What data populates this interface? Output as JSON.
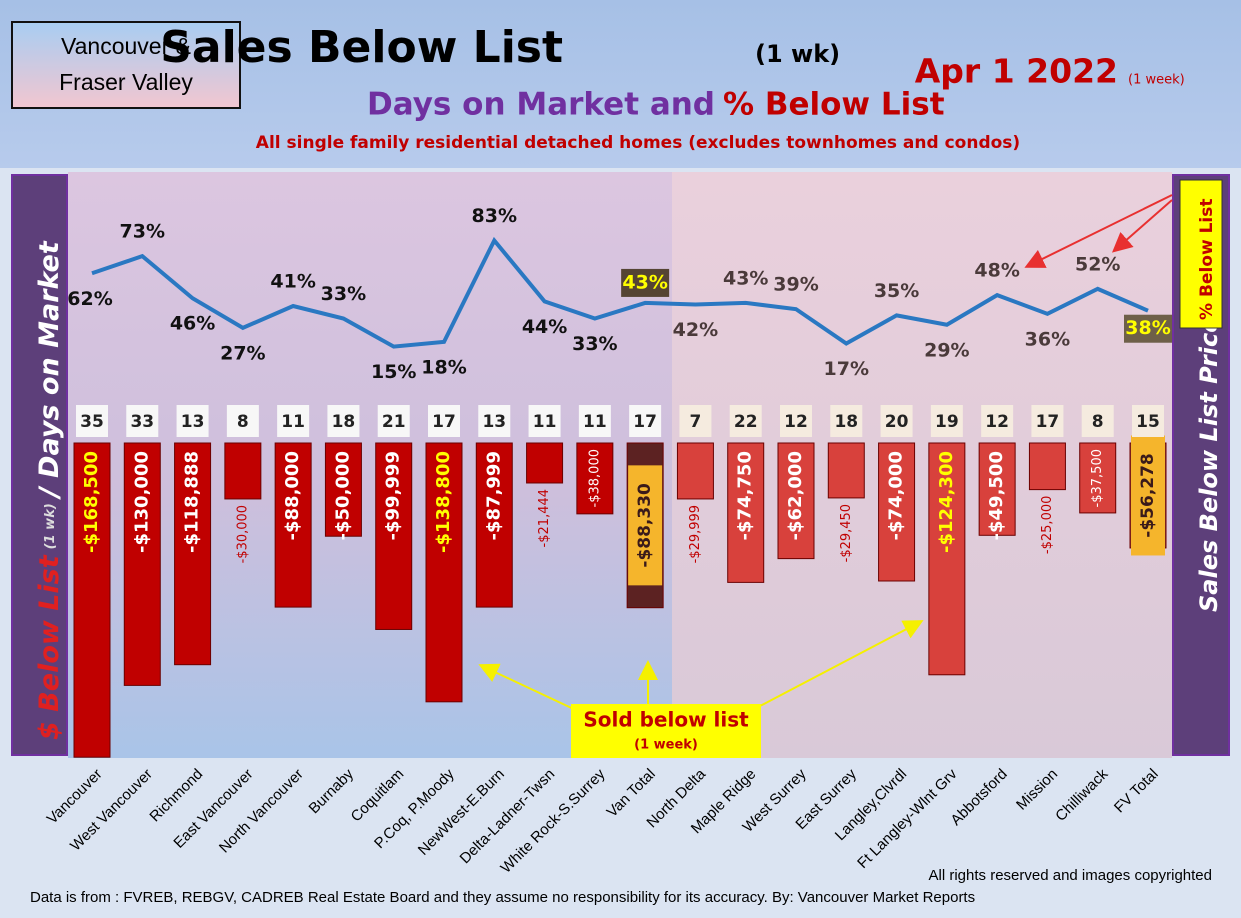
{
  "chart_data": {
    "type": "bar",
    "title": "Sales Below List",
    "title_note": "(1 wk)",
    "date": "Apr 1  2022",
    "date_note": "(1 week)",
    "region_label": [
      "Vancouver &",
      "Fraser Valley"
    ],
    "subtitle": [
      "Days on Market and",
      "% Below List"
    ],
    "note": "All single family residential detached homes (excludes townhomes and condos)",
    "y_label": [
      "$ Below List",
      "(1 wk)",
      "/ Days on Market"
    ],
    "y2_label": "Sales Below List Price",
    "line_label": "% Below List",
    "callout": "Sold below list",
    "callout_note": "(1 week)",
    "copyright": "All rights reserved and  images copyrighted",
    "source": "Data is from : FVREB, REBGV, CADREB Real Estate Board and they assume no responsibility for its accuracy. By: Vancouver Market Reports",
    "categories": [
      "Vancouver",
      "West Vancouver",
      "Richmond",
      "East Vancouver",
      "North Vancouver",
      "Burnaby",
      "Coquitlam",
      "P.Coq, P.Moody",
      "NewWest-E.Burn",
      "Delta-Ladner-Twsn",
      "White Rock-S.Surrey",
      "Van Total",
      "North Delta",
      "Maple Ridge",
      "West Surrey",
      "East Surrey",
      "Langley,Clvrdl",
      "Ft Langley-Wlnt Grv",
      "Abbotsford",
      "Mission",
      "Chilliwack",
      "FV Total"
    ],
    "values": [
      -168500,
      -130000,
      -118888,
      -30000,
      -88000,
      -50000,
      -99999,
      -138800,
      -87999,
      -21444,
      -38000,
      -88330,
      -29999,
      -74750,
      -62000,
      -29450,
      -74000,
      -124300,
      -49500,
      -25000,
      -37500,
      -56278
    ],
    "value_labels": [
      "-$168,500",
      "-$130,000",
      "-$118,888",
      "-$30,000",
      "-$88,000",
      "-$50,000",
      "-$99,999",
      "-$138,800",
      "-$87,999",
      "-$21,444",
      "-$38,000",
      "-$88,330",
      "-$29,999",
      "-$74,750",
      "-$62,000",
      "-$29,450",
      "-$74,000",
      "-$124,300",
      "-$49,500",
      "-$25,000",
      "-$37,500",
      "-$56,278"
    ],
    "ylim": [
      -170000,
      0
    ],
    "days": [
      35,
      33,
      13,
      8,
      11,
      18,
      21,
      17,
      13,
      11,
      11,
      17,
      7,
      22,
      12,
      18,
      20,
      19,
      12,
      17,
      8,
      15
    ],
    "percent": [
      62,
      73,
      46,
      27,
      41,
      33,
      15,
      18,
      83,
      44,
      33,
      43,
      42,
      43,
      39,
      17,
      35,
      29,
      48,
      36,
      52,
      38
    ],
    "percent_labels": [
      "62%",
      "73%",
      "46%",
      "27%",
      "41%",
      "33%",
      "15%",
      "18%",
      "83%",
      "44%",
      "33%",
      "43%",
      "42%",
      "43%",
      "39%",
      "17%",
      "35%",
      "29%",
      "48%",
      "36%",
      "52%",
      "38%"
    ],
    "y2lim": [
      0,
      100
    ],
    "colors": {
      "van": "#c00000",
      "fv": "#d8413c",
      "total_van": "#5c2222",
      "total_fv": "#8c3d30",
      "line": "#2a78c2"
    }
  }
}
